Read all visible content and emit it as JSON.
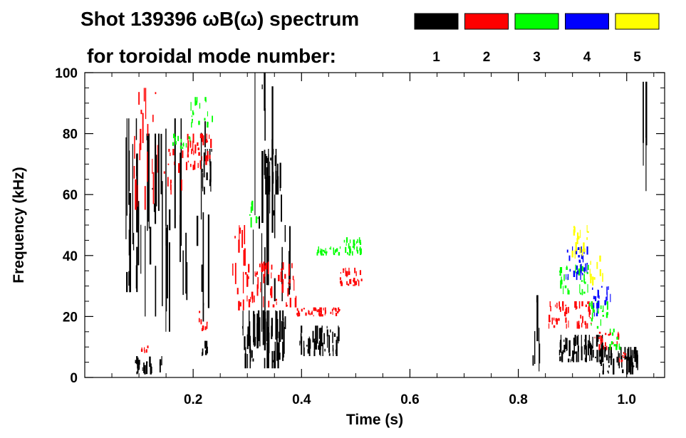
{
  "chart_data": {
    "type": "heatmap",
    "title_line1": "Shot 139396 ωB(ω) spectrum",
    "title_line2": "for toroidal mode number:",
    "xlabel": "Time (s)",
    "ylabel": "Frequency (kHz)",
    "xlim": [
      0.0,
      1.07
    ],
    "ylim": [
      0,
      100
    ],
    "x_ticks": [
      0.2,
      0.4,
      0.6,
      0.8,
      1.0
    ],
    "x_tick_labels": [
      "0.2",
      "0.4",
      "0.6",
      "0.8",
      "1.0"
    ],
    "y_ticks": [
      0,
      20,
      40,
      60,
      80,
      100
    ],
    "y_tick_labels": [
      "0",
      "20",
      "40",
      "60",
      "80",
      "100"
    ],
    "grid": false,
    "legend_placement": "top-right",
    "legend": [
      {
        "name": "1",
        "color": "#000000"
      },
      {
        "name": "2",
        "color": "#ff0000"
      },
      {
        "name": "3",
        "color": "#00ff00"
      },
      {
        "name": "4",
        "color": "#0000ff"
      },
      {
        "name": "5",
        "color": "#ffff00"
      }
    ],
    "series": [
      {
        "name": "1",
        "color": "#000000",
        "regions": [
          {
            "t": [
              0.075,
              0.095
            ],
            "f": [
              28,
              85
            ],
            "density": 0.95
          },
          {
            "t": [
              0.095,
              0.14
            ],
            "f": [
              20,
              80
            ],
            "density": 0.35
          },
          {
            "t": [
              0.14,
              0.235
            ],
            "f": [
              15,
              85
            ],
            "density": 0.25
          },
          {
            "t": [
              0.215,
              0.235
            ],
            "f": [
              60,
              75
            ],
            "density": 0.8
          },
          {
            "t": [
              0.09,
              0.145
            ],
            "f": [
              1,
              7
            ],
            "density": 0.4
          },
          {
            "t": [
              0.215,
              0.225
            ],
            "f": [
              7,
              12
            ],
            "density": 0.6
          },
          {
            "t": [
              0.29,
              0.37
            ],
            "f": [
              3,
              22
            ],
            "density": 0.9
          },
          {
            "t": [
              0.31,
              0.345
            ],
            "f": [
              15,
              100
            ],
            "density": 0.4
          },
          {
            "t": [
              0.33,
              0.36
            ],
            "f": [
              60,
              75
            ],
            "density": 0.85
          },
          {
            "t": [
              0.345,
              0.38
            ],
            "f": [
              25,
              60
            ],
            "density": 0.25
          },
          {
            "t": [
              0.395,
              0.47
            ],
            "f": [
              7,
              17
            ],
            "density": 0.75
          },
          {
            "t": [
              0.825,
              0.84
            ],
            "f": [
              2,
              27
            ],
            "density": 0.3
          },
          {
            "t": [
              0.875,
              0.955
            ],
            "f": [
              5,
              14
            ],
            "density": 0.9
          },
          {
            "t": [
              0.95,
              1.02
            ],
            "f": [
              1,
              10
            ],
            "density": 0.8
          },
          {
            "t": [
              1.028,
              1.036
            ],
            "f": [
              60,
              97
            ],
            "density": 0.5
          }
        ]
      },
      {
        "name": "2",
        "color": "#ff0000",
        "regions": [
          {
            "t": [
              0.09,
              0.14
            ],
            "f": [
              55,
              95
            ],
            "density": 0.4
          },
          {
            "t": [
              0.14,
              0.185
            ],
            "f": [
              60,
              75
            ],
            "density": 0.3
          },
          {
            "t": [
              0.185,
              0.235
            ],
            "f": [
              68,
              80
            ],
            "density": 0.85
          },
          {
            "t": [
              0.21,
              0.225
            ],
            "f": [
              15,
              22
            ],
            "density": 0.5
          },
          {
            "t": [
              0.1,
              0.115
            ],
            "f": [
              8,
              12
            ],
            "density": 0.4
          },
          {
            "t": [
              0.27,
              0.295
            ],
            "f": [
              22,
              50
            ],
            "density": 0.6
          },
          {
            "t": [
              0.295,
              0.39
            ],
            "f": [
              23,
              38
            ],
            "density": 0.7
          },
          {
            "t": [
              0.39,
              0.47
            ],
            "f": [
              20,
              23
            ],
            "density": 0.7
          },
          {
            "t": [
              0.47,
              0.51
            ],
            "f": [
              30,
              36
            ],
            "density": 0.85
          },
          {
            "t": [
              0.855,
              0.935
            ],
            "f": [
              16,
              25
            ],
            "density": 0.8
          },
          {
            "t": [
              0.935,
              0.985
            ],
            "f": [
              9,
              15
            ],
            "density": 0.5
          },
          {
            "t": [
              0.985,
              1.0
            ],
            "f": [
              5,
              9
            ],
            "density": 0.5
          }
        ]
      },
      {
        "name": "3",
        "color": "#00ff00",
        "regions": [
          {
            "t": [
              0.195,
              0.235
            ],
            "f": [
              82,
              92
            ],
            "density": 0.55
          },
          {
            "t": [
              0.16,
              0.195
            ],
            "f": [
              75,
              80
            ],
            "density": 0.4
          },
          {
            "t": [
              0.3,
              0.32
            ],
            "f": [
              45,
              58
            ],
            "density": 0.4
          },
          {
            "t": [
              0.42,
              0.475
            ],
            "f": [
              40,
              43
            ],
            "density": 0.5
          },
          {
            "t": [
              0.475,
              0.51
            ],
            "f": [
              40,
              46
            ],
            "density": 0.85
          },
          {
            "t": [
              0.875,
              0.93
            ],
            "f": [
              27,
              37
            ],
            "density": 0.7
          },
          {
            "t": [
              0.93,
              0.965
            ],
            "f": [
              16,
              25
            ],
            "density": 0.7
          },
          {
            "t": [
              0.965,
              0.99
            ],
            "f": [
              9,
              16
            ],
            "density": 0.4
          }
        ]
      },
      {
        "name": "4",
        "color": "#0000ff",
        "regions": [
          {
            "t": [
              0.885,
              0.93
            ],
            "f": [
              32,
              43
            ],
            "density": 0.7
          },
          {
            "t": [
              0.93,
              0.97
            ],
            "f": [
              20,
              30
            ],
            "density": 0.5
          }
        ]
      },
      {
        "name": "5",
        "color": "#ffff00",
        "regions": [
          {
            "t": [
              0.895,
              0.93
            ],
            "f": [
              39,
              50
            ],
            "density": 0.5
          },
          {
            "t": [
              0.93,
              0.955
            ],
            "f": [
              30,
              40
            ],
            "density": 0.4
          }
        ]
      }
    ]
  }
}
